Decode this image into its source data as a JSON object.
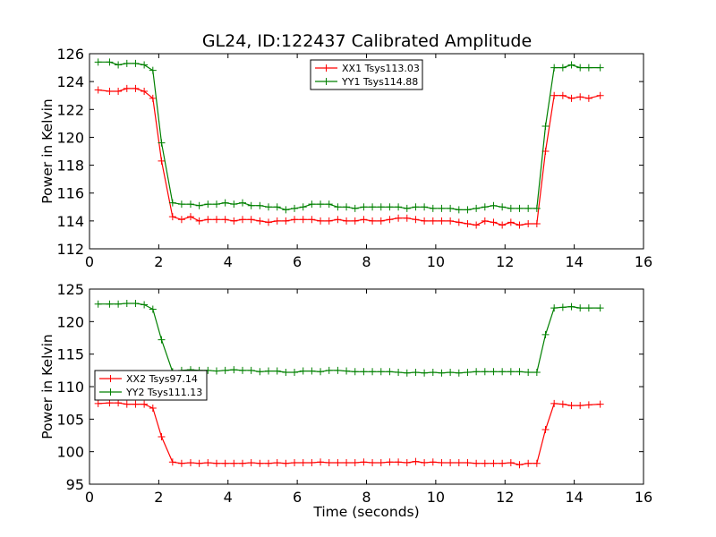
{
  "title": "GL24, ID:122437 Calibrated Amplitude",
  "chart_data": [
    {
      "type": "line",
      "ylabel": "Power in Kelvin",
      "xlabel": "",
      "xlim": [
        0,
        16
      ],
      "ylim": [
        112,
        126
      ],
      "xticks": [
        "0",
        "2",
        "4",
        "6",
        "8",
        "10",
        "12",
        "14",
        "16"
      ],
      "yticks": [
        "112",
        "114",
        "116",
        "118",
        "120",
        "122",
        "124",
        "126"
      ],
      "legend_position": "upper-center",
      "x": [
        0.25,
        0.58,
        0.83,
        1.08,
        1.33,
        1.58,
        1.83,
        2.08,
        2.4,
        2.66,
        2.92,
        3.17,
        3.42,
        3.67,
        3.92,
        4.17,
        4.42,
        4.67,
        4.92,
        5.17,
        5.42,
        5.67,
        5.92,
        6.17,
        6.42,
        6.67,
        6.92,
        7.17,
        7.42,
        7.67,
        7.92,
        8.17,
        8.42,
        8.67,
        8.92,
        9.17,
        9.42,
        9.67,
        9.92,
        10.17,
        10.42,
        10.67,
        10.92,
        11.17,
        11.42,
        11.67,
        11.92,
        12.17,
        12.42,
        12.67,
        12.92,
        13.17,
        13.42,
        13.67,
        13.92,
        14.17,
        14.42,
        14.75
      ],
      "series": [
        {
          "name": "XX1 Tsys113.03",
          "color": "#ff0000",
          "values": [
            123.4,
            123.3,
            123.3,
            123.5,
            123.5,
            123.3,
            122.8,
            118.3,
            114.3,
            114.1,
            114.3,
            114.0,
            114.1,
            114.1,
            114.1,
            114.0,
            114.1,
            114.1,
            114.0,
            113.9,
            114.0,
            114.0,
            114.1,
            114.1,
            114.1,
            114.0,
            114.0,
            114.1,
            114.0,
            114.0,
            114.1,
            114.0,
            114.0,
            114.1,
            114.2,
            114.2,
            114.1,
            114.0,
            114.0,
            114.0,
            114.0,
            113.9,
            113.8,
            113.7,
            114.0,
            113.9,
            113.7,
            113.9,
            113.7,
            113.8,
            113.8,
            119.0,
            123.0,
            123.0,
            122.8,
            122.9,
            122.8,
            123.0
          ]
        },
        {
          "name": "YY1 Tsys114.88",
          "color": "#008000",
          "values": [
            125.4,
            125.4,
            125.2,
            125.3,
            125.3,
            125.2,
            124.8,
            119.6,
            115.3,
            115.2,
            115.2,
            115.1,
            115.2,
            115.2,
            115.3,
            115.2,
            115.3,
            115.1,
            115.1,
            115.0,
            115.0,
            114.8,
            114.9,
            115.0,
            115.2,
            115.2,
            115.2,
            115.0,
            115.0,
            114.9,
            115.0,
            115.0,
            115.0,
            115.0,
            115.0,
            114.9,
            115.0,
            115.0,
            114.9,
            114.9,
            114.9,
            114.8,
            114.8,
            114.9,
            115.0,
            115.1,
            115.0,
            114.9,
            114.9,
            114.9,
            114.9,
            120.8,
            125.0,
            125.0,
            125.2,
            125.0,
            125.0,
            125.0
          ]
        }
      ]
    },
    {
      "type": "line",
      "ylabel": "Power in Kelvin",
      "xlabel": "Time (seconds)",
      "xlim": [
        0,
        16
      ],
      "ylim": [
        95,
        125
      ],
      "xticks": [
        "0",
        "2",
        "4",
        "6",
        "8",
        "10",
        "12",
        "14",
        "16"
      ],
      "yticks": [
        "95",
        "100",
        "105",
        "110",
        "115",
        "120",
        "125"
      ],
      "legend_position": "center-left",
      "x": [
        0.25,
        0.58,
        0.83,
        1.08,
        1.33,
        1.58,
        1.83,
        2.08,
        2.4,
        2.66,
        2.92,
        3.17,
        3.42,
        3.67,
        3.92,
        4.17,
        4.42,
        4.67,
        4.92,
        5.17,
        5.42,
        5.67,
        5.92,
        6.17,
        6.42,
        6.67,
        6.92,
        7.17,
        7.42,
        7.67,
        7.92,
        8.17,
        8.42,
        8.67,
        8.92,
        9.17,
        9.42,
        9.67,
        9.92,
        10.17,
        10.42,
        10.67,
        10.92,
        11.17,
        11.42,
        11.67,
        11.92,
        12.17,
        12.42,
        12.67,
        12.92,
        13.17,
        13.42,
        13.67,
        13.92,
        14.17,
        14.42,
        14.75
      ],
      "series": [
        {
          "name": "XX2 Tsys97.14",
          "color": "#ff0000",
          "values": [
            107.4,
            107.5,
            107.5,
            107.3,
            107.3,
            107.3,
            106.7,
            102.3,
            98.4,
            98.2,
            98.3,
            98.2,
            98.3,
            98.2,
            98.2,
            98.2,
            98.2,
            98.3,
            98.2,
            98.2,
            98.3,
            98.2,
            98.3,
            98.3,
            98.3,
            98.4,
            98.3,
            98.3,
            98.3,
            98.3,
            98.4,
            98.3,
            98.3,
            98.4,
            98.4,
            98.3,
            98.5,
            98.3,
            98.4,
            98.3,
            98.3,
            98.3,
            98.3,
            98.2,
            98.2,
            98.2,
            98.2,
            98.3,
            98.0,
            98.2,
            98.2,
            103.4,
            107.4,
            107.3,
            107.1,
            107.1,
            107.2,
            107.3
          ]
        },
        {
          "name": "YY2 Tsys111.13",
          "color": "#008000",
          "values": [
            122.7,
            122.7,
            122.7,
            122.8,
            122.8,
            122.6,
            121.9,
            117.2,
            112.3,
            112.5,
            112.6,
            112.5,
            112.5,
            112.4,
            112.5,
            112.6,
            112.5,
            112.5,
            112.3,
            112.4,
            112.4,
            112.2,
            112.2,
            112.4,
            112.4,
            112.3,
            112.5,
            112.5,
            112.4,
            112.3,
            112.3,
            112.3,
            112.3,
            112.3,
            112.2,
            112.1,
            112.2,
            112.1,
            112.2,
            112.1,
            112.2,
            112.1,
            112.2,
            112.3,
            112.3,
            112.3,
            112.3,
            112.3,
            112.3,
            112.2,
            112.2,
            118.0,
            122.1,
            122.2,
            122.3,
            122.1,
            122.1,
            122.1
          ]
        }
      ]
    }
  ]
}
